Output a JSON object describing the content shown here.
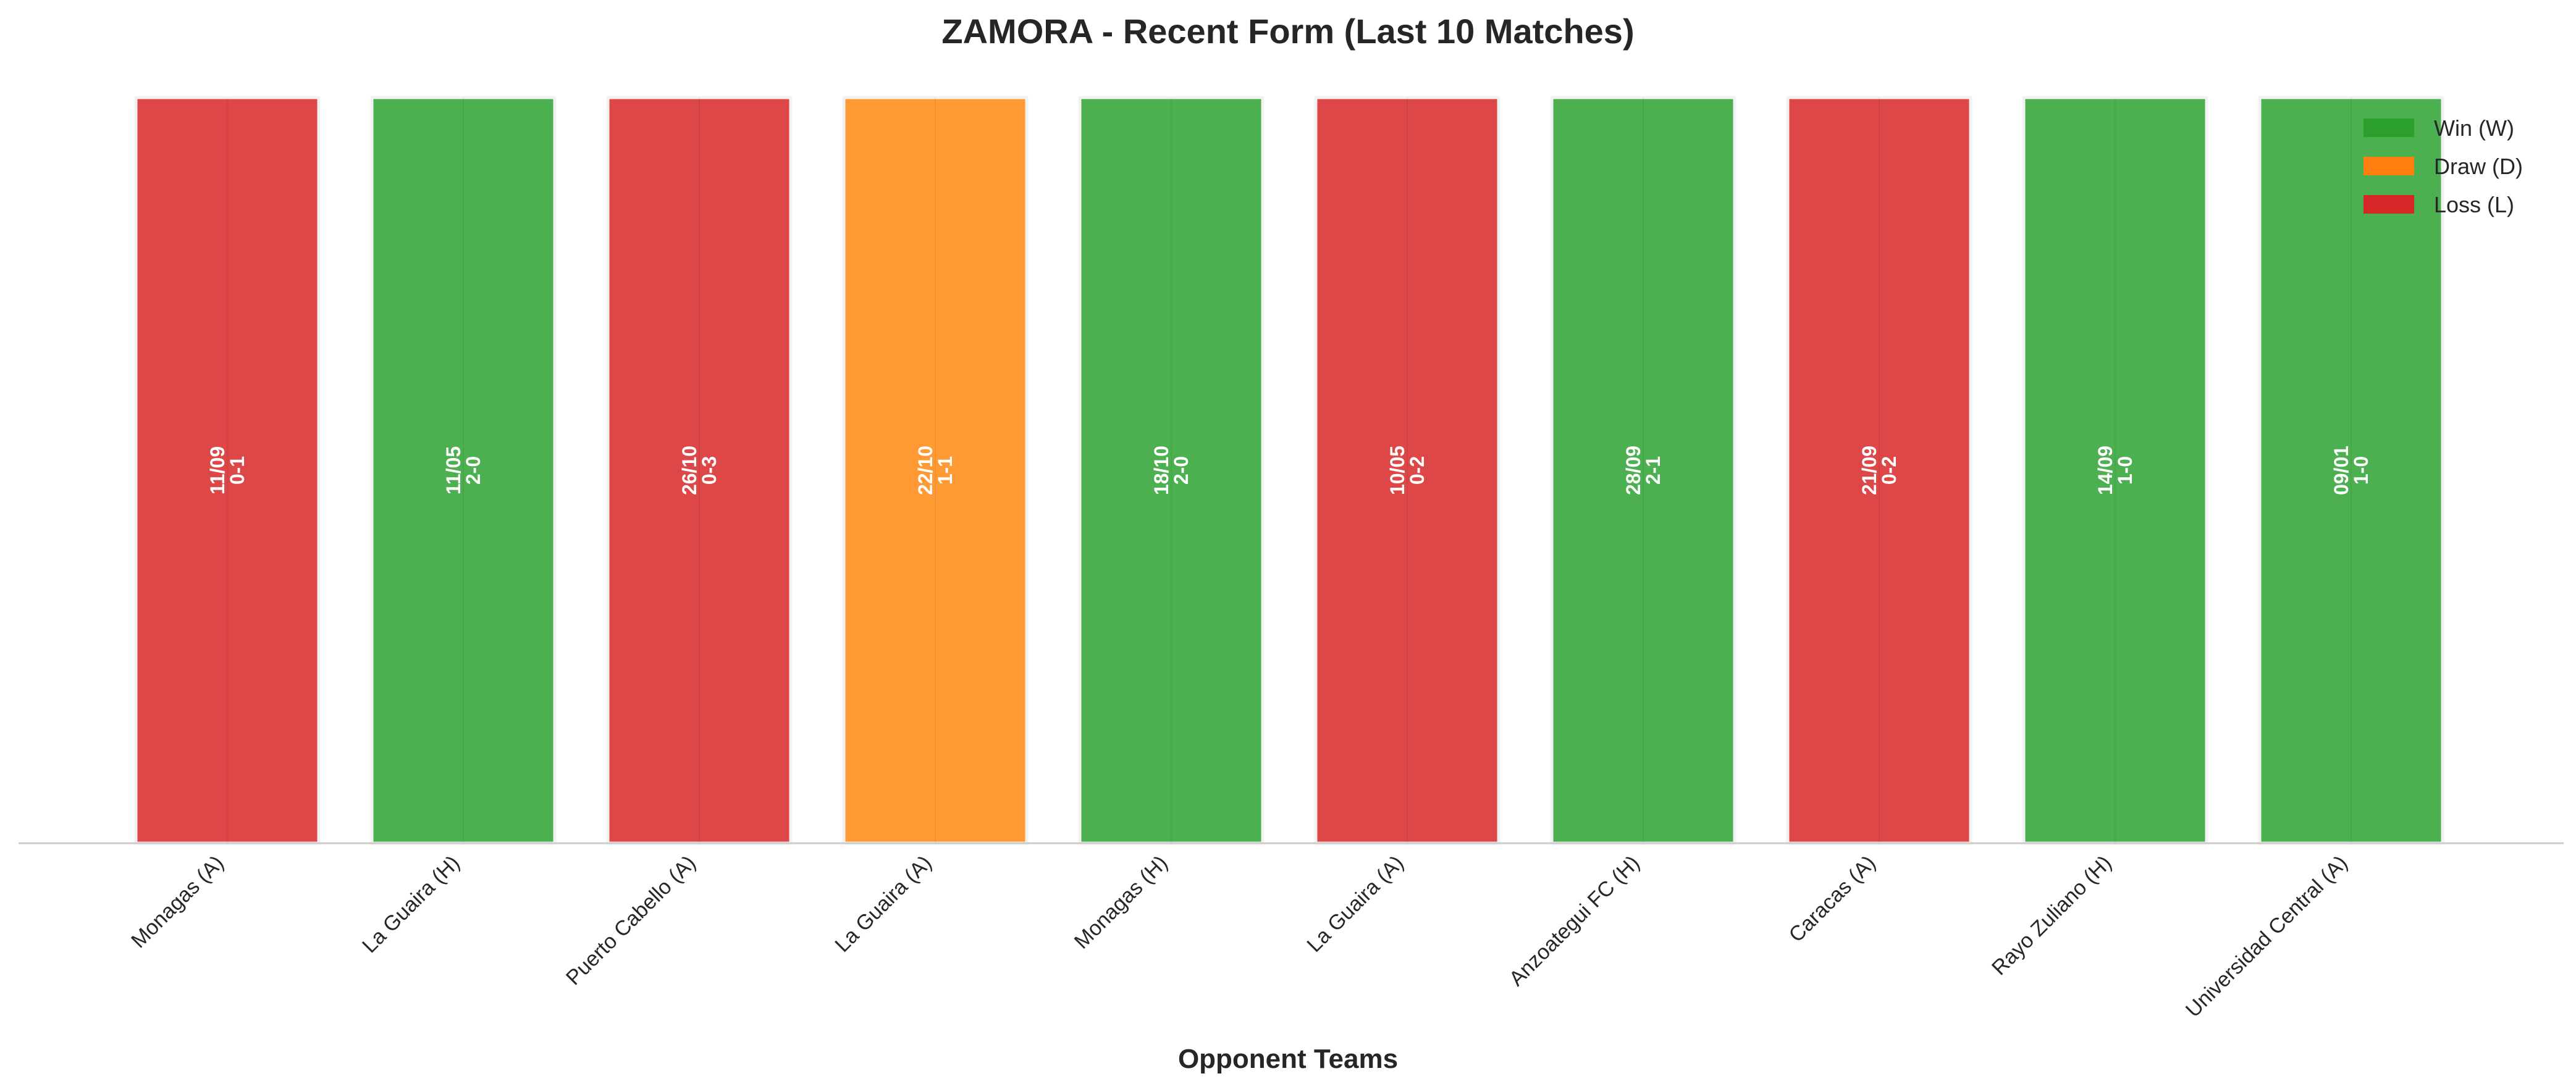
{
  "chart_data": {
    "type": "bar",
    "title": "ZAMORA - Recent Form (Last 10 Matches)",
    "xlabel": "Opponent Teams",
    "ylabel": "",
    "grid": false,
    "legend_position": "top-right",
    "categories": [
      "Monagas (A)",
      "La Guaira (H)",
      "Puerto Cabello (A)",
      "La Guaira (A)",
      "Monagas (H)",
      "La Guaira (A)",
      "Anzoategui FC (H)",
      "Caracas (A)",
      "Rayo Zuliano (H)",
      "Universidad Central (A)"
    ],
    "values": [
      1,
      1,
      1,
      1,
      1,
      1,
      1,
      1,
      1,
      1
    ],
    "ylim": [
      0,
      1
    ],
    "results": [
      "L",
      "W",
      "L",
      "D",
      "W",
      "L",
      "W",
      "L",
      "W",
      "W"
    ],
    "dates": [
      "11/09",
      "11/05",
      "26/10",
      "22/10",
      "18/10",
      "10/05",
      "28/09",
      "21/09",
      "14/09",
      "09/01"
    ],
    "scores": [
      "0-1",
      "2-0",
      "0-3",
      "1-1",
      "2-0",
      "0-2",
      "2-1",
      "0-2",
      "1-0",
      "1-0"
    ],
    "colors": {
      "W": "#4caf50",
      "D": "#ff9933",
      "L": "#dd4747"
    },
    "legend": [
      {
        "key": "W",
        "label": "Win (W)",
        "color": "#2ca02c"
      },
      {
        "key": "D",
        "label": "Draw (D)",
        "color": "#ff7f0e"
      },
      {
        "key": "L",
        "label": "Loss (L)",
        "color": "#d62728"
      }
    ]
  }
}
